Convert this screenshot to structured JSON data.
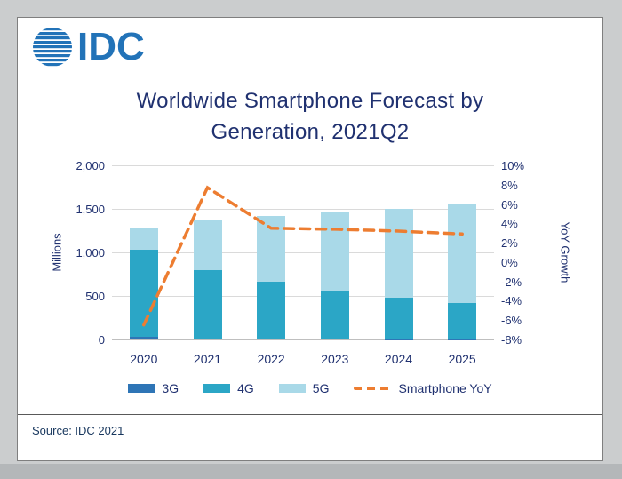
{
  "logo": {
    "text": "IDC"
  },
  "title": {
    "line1": "Worldwide Smartphone Forecast by",
    "line2": "Generation, 2021Q2"
  },
  "footer": {
    "source": "Source: IDC 2021"
  },
  "colors": {
    "navy_text": "#203170",
    "logo_blue": "#2273B8",
    "grid": "#dadada",
    "line_orange": "#ED7D31"
  },
  "chart_data": {
    "type": "bar",
    "stacked": true,
    "title": "Worldwide Smartphone Forecast by Generation, 2021Q2",
    "categories": [
      "2020",
      "2021",
      "2022",
      "2023",
      "2024",
      "2025"
    ],
    "series": [
      {
        "name": "3G",
        "color": "#2E75B6",
        "values": [
          30,
          15,
          10,
          6,
          4,
          2
        ]
      },
      {
        "name": "4G",
        "color": "#2BA6C6",
        "values": [
          1000,
          785,
          650,
          555,
          475,
          415
        ]
      },
      {
        "name": "5G",
        "color": "#A9D9E8",
        "values": [
          250,
          570,
          755,
          900,
          1020,
          1130
        ]
      }
    ],
    "line_series": {
      "name": "Smartphone YoY",
      "axis": "right",
      "style": "dashed",
      "color": "#ED7D31",
      "values": [
        -6.5,
        7.7,
        3.5,
        3.4,
        3.2,
        2.9
      ]
    },
    "left_axis": {
      "label": "Millions",
      "min": 0,
      "max": 2000,
      "step": 500,
      "ticks": [
        "2,000",
        "1,500",
        "1,000",
        "500",
        "0"
      ]
    },
    "right_axis": {
      "label": "YoY Growth",
      "min": -8,
      "max": 10,
      "step": 2,
      "ticks": [
        "10%",
        "8%",
        "6%",
        "4%",
        "2%",
        "0%",
        "-2%",
        "-4%",
        "-6%",
        "-8%"
      ]
    },
    "legend": [
      {
        "label": "3G",
        "swatch": "rect",
        "color": "#2E75B6"
      },
      {
        "label": "4G",
        "swatch": "rect",
        "color": "#2BA6C6"
      },
      {
        "label": "5G",
        "swatch": "rect",
        "color": "#A9D9E8"
      },
      {
        "label": "Smartphone YoY",
        "swatch": "dashed-line",
        "color": "#ED7D31"
      }
    ],
    "legend_position": "bottom",
    "grid": true
  }
}
